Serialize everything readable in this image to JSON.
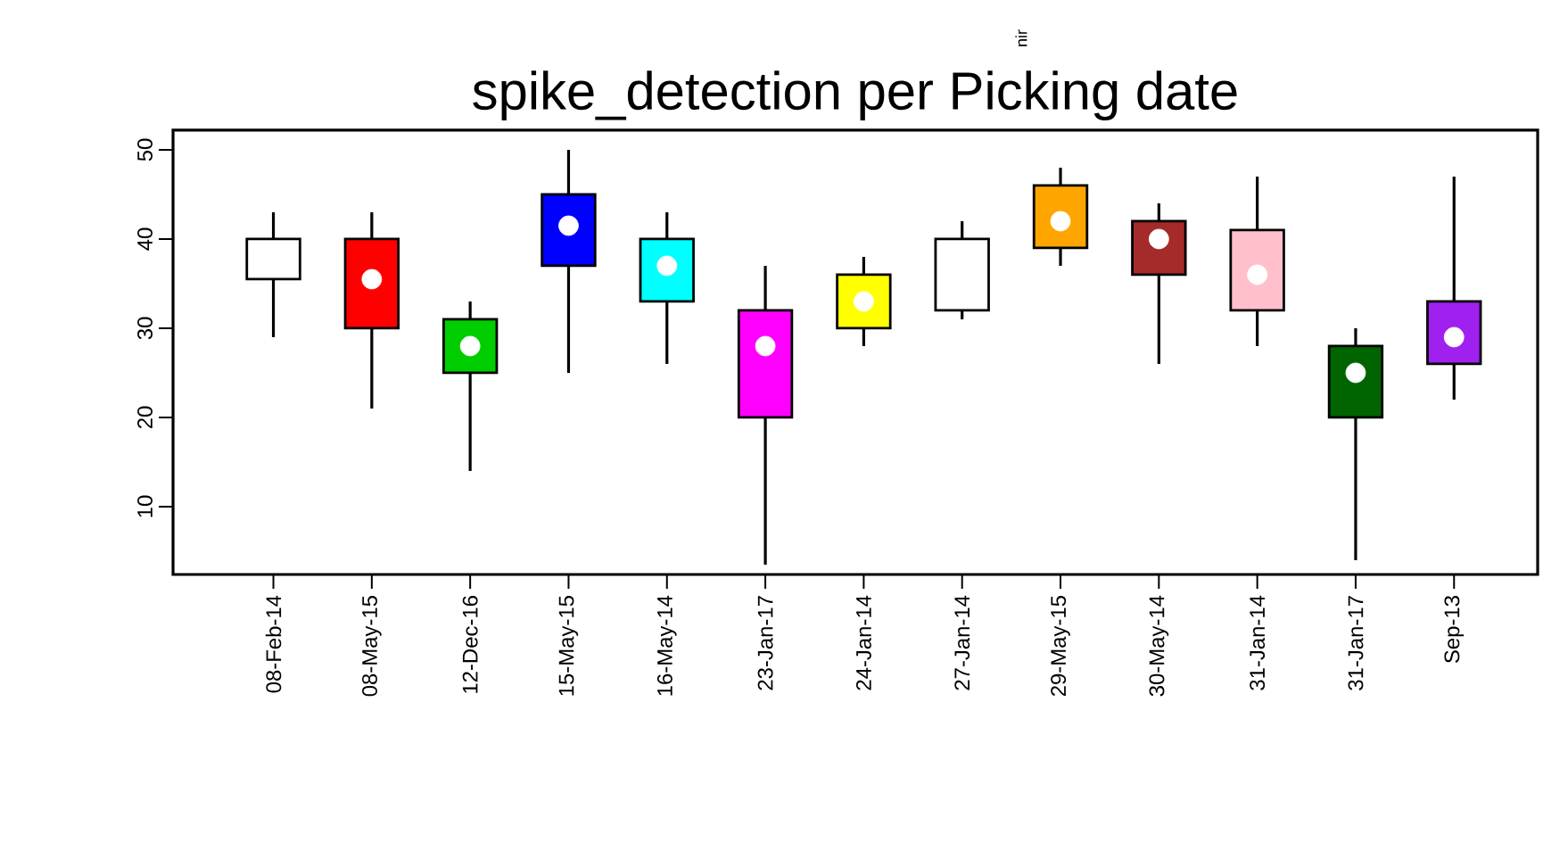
{
  "chart_data": {
    "type": "box",
    "title": "spike_detection per Picking date",
    "categories": [
      "08-Feb-14",
      "08-May-15",
      "12-Dec-16",
      "15-May-15",
      "16-May-14",
      "23-Jan-17",
      "24-Jan-14",
      "27-Jan-14",
      "29-May-15",
      "30-May-14",
      "31-Jan-14",
      "31-Jan-17",
      "Sep-13"
    ],
    "colors": [
      "#ffffff",
      "#ff0000",
      "#00cd00",
      "#0000ff",
      "#00ffff",
      "#ff00ff",
      "#ffff00",
      "#ffffff",
      "#ffa500",
      "#a52a2a",
      "#ffc0cb",
      "#006400",
      "#a020f0"
    ],
    "boxes": [
      {
        "low": 29,
        "q1": 35.5,
        "median": 38,
        "q3": 40,
        "high": 43
      },
      {
        "low": 21,
        "q1": 30,
        "median": 35.5,
        "q3": 40,
        "high": 43
      },
      {
        "low": 14,
        "q1": 25,
        "median": 28,
        "q3": 31,
        "high": 33
      },
      {
        "low": 25,
        "q1": 37,
        "median": 41.5,
        "q3": 45,
        "high": 50
      },
      {
        "low": 26,
        "q1": 33,
        "median": 37,
        "q3": 40,
        "high": 43
      },
      {
        "low": 3.5,
        "q1": 20,
        "median": 28,
        "q3": 32,
        "high": 37
      },
      {
        "low": 28,
        "q1": 30,
        "median": 33,
        "q3": 36,
        "high": 38
      },
      {
        "low": 31,
        "q1": 32,
        "median": 34,
        "q3": 40,
        "high": 42
      },
      {
        "low": 37,
        "q1": 39,
        "median": 42,
        "q3": 46,
        "high": 48
      },
      {
        "low": 26,
        "q1": 36,
        "median": 40,
        "q3": 42,
        "high": 44
      },
      {
        "low": 28,
        "q1": 32,
        "median": 36,
        "q3": 41,
        "high": 47
      },
      {
        "low": 4,
        "q1": 20,
        "median": 25,
        "q3": 28,
        "high": 30
      },
      {
        "low": 22,
        "q1": 26,
        "median": 29,
        "q3": 33,
        "high": 47
      }
    ],
    "ylim": [
      2.4,
      52.2
    ],
    "yticks": [
      10,
      20,
      30,
      40,
      50
    ],
    "grid": false,
    "annotations": [
      "nir"
    ]
  }
}
